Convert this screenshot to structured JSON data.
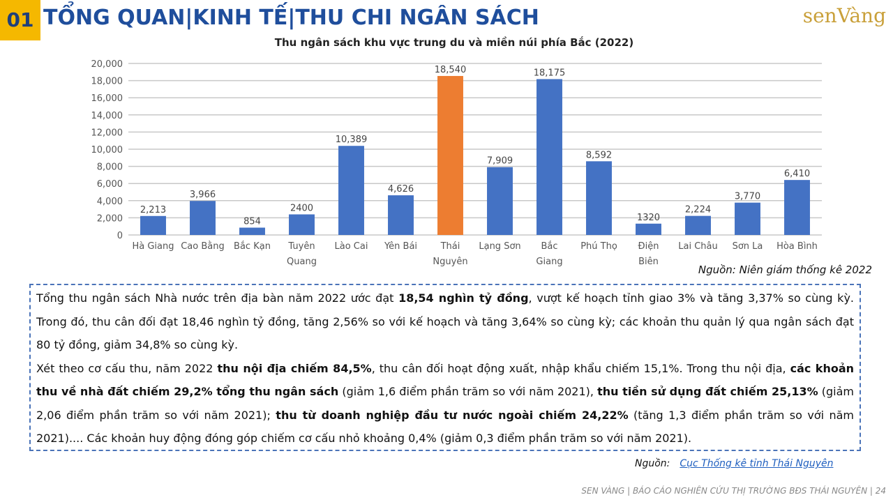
{
  "header": {
    "number": "01",
    "title": "TỔNG QUAN|KINH TẾ|THU CHI NGÂN SÁCH",
    "logo": "senVàng"
  },
  "chart_data": {
    "type": "bar",
    "title": "Thu ngân sách khu vực trung du và miền núi phía Bắc (2022)",
    "categories": [
      "Hà Giang",
      "Cao Bằng",
      "Bắc Kạn",
      "Tuyên\nQuang",
      "Lào Cai",
      "Yên Bái",
      "Thái\nNguyên",
      "Lạng Sơn",
      "Bắc\nGiang",
      "Phú Thọ",
      "Điện\nBiên",
      "Lai Châu",
      "Sơn La",
      "Hòa Bình"
    ],
    "values": [
      2213,
      3966,
      854,
      2400,
      10389,
      4626,
      18540,
      7909,
      18175,
      8592,
      1320,
      2224,
      3770,
      6410
    ],
    "value_labels": [
      "2,213",
      "3,966",
      "854",
      "2400",
      "10,389",
      "4,626",
      "18,540",
      "7,909",
      "18,175",
      "8,592",
      "1320",
      "2,224",
      "3,770",
      "6,410"
    ],
    "colors": [
      "#4472c4",
      "#4472c4",
      "#4472c4",
      "#4472c4",
      "#4472c4",
      "#4472c4",
      "#ed7d31",
      "#4472c4",
      "#4472c4",
      "#4472c4",
      "#4472c4",
      "#4472c4",
      "#4472c4",
      "#4472c4"
    ],
    "ylim": [
      0,
      20000
    ],
    "yticks": [
      0,
      {
        "value": 2000,
        "label": "2,000"
      },
      {
        "value": 4000,
        "label": "4,000"
      },
      {
        "value": 6000,
        "label": "6,000"
      },
      {
        "value": 8000,
        "label": "8,000"
      },
      {
        "value": 10000,
        "label": "10,000"
      },
      {
        "value": 12000,
        "label": "12,000"
      },
      {
        "value": 14000,
        "label": "14,000"
      },
      {
        "value": 16000,
        "label": "16,000"
      },
      {
        "value": 18000,
        "label": "18,000"
      },
      {
        "value": 20000,
        "label": "20,000"
      }
    ],
    "grid": true
  },
  "chart_source": "Nguồn: Niên giám thống kê 2022",
  "paragraphs": [
    {
      "runs": [
        {
          "text": "Tổng thu ngân sách Nhà nước trên địa bàn năm 2022 ước đạt "
        },
        {
          "text": "18,54 nghìn tỷ đồng",
          "bold": true
        },
        {
          "text": ", vượt kế hoạch tỉnh giao 3% và tăng 3,37% so cùng kỳ. Trong đó, thu cân đối đạt 18,46 nghìn tỷ đồng, tăng 2,56% so với kế hoạch và tăng 3,64% so cùng kỳ; các khoản thu quản lý qua ngân sách đạt 80 tỷ đồng, giảm 34,8% so cùng kỳ."
        }
      ]
    },
    {
      "runs": [
        {
          "text": "Xét theo cơ cấu thu, năm 2022 "
        },
        {
          "text": "thu nội địa chiếm 84,5%",
          "bold": true
        },
        {
          "text": ", thu cân đối hoạt động xuất, nhập khẩu chiếm 15,1%.  Trong thu nội địa, "
        },
        {
          "text": "các khoản thu về nhà đất chiếm 29,2% tổng thu ngân sách",
          "bold": true
        },
        {
          "text": " (giảm 1,6 điểm phần trăm so với năm 2021), "
        },
        {
          "text": "thu tiền sử dụng đất chiếm 25,13%",
          "bold": true
        },
        {
          "text": " (giảm 2,06 điểm phần trăm so với năm 2021); "
        },
        {
          "text": "thu từ doanh nghiệp đầu tư nước ngoài chiếm 24,22%",
          "bold": true
        },
        {
          "text": " (tăng 1,3 điểm phần trăm so với năm 2021).... Các khoản huy động đóng góp chiếm cơ cấu nhỏ khoảng 0,4% (giảm 0,3 điểm phần trăm so với năm 2021)."
        }
      ]
    }
  ],
  "source": {
    "label": "Nguồn:",
    "link": "Cục Thống kê tỉnh Thái Nguyên"
  },
  "footer": "SEN VÀNG | BÁO CÁO NGHIÊN CỨU THỊ TRƯỜNG BĐS THÁI NGUYÊN | 24"
}
